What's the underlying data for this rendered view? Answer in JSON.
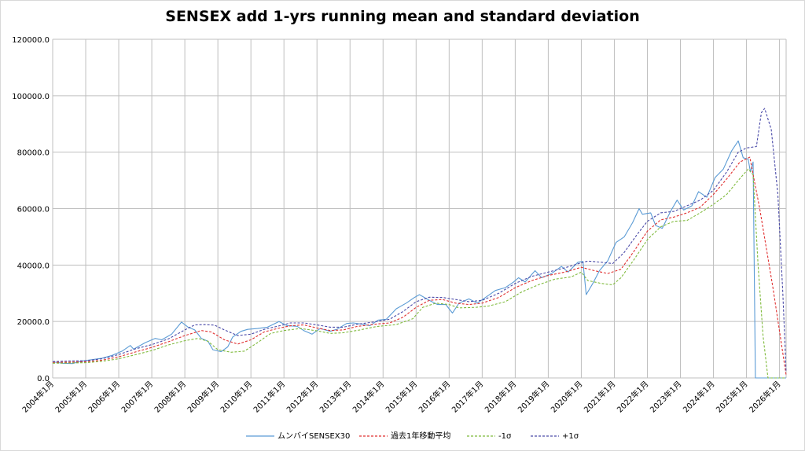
{
  "chart_data": {
    "type": "line",
    "title": "SENSEX add 1-yrs running mean and standard deviation",
    "xlabel": "",
    "ylabel": "",
    "ylim": [
      0,
      120000
    ],
    "yticks": [
      "0.0",
      "20000.0",
      "40000.0",
      "60000.0",
      "80000.0",
      "100000.0",
      "120000.0"
    ],
    "xticks": [
      "2004年1月",
      "2005年1月",
      "2006年1月",
      "2007年1月",
      "2008年1月",
      "2009年1月",
      "2010年1月",
      "2011年1月",
      "2012年1月",
      "2013年1月",
      "2014年1月",
      "2015年1月",
      "2016年1月",
      "2017年1月",
      "2018年1月",
      "2019年1月",
      "2020年1月",
      "2021年1月",
      "2022年1月",
      "2023年1月",
      "2024年1月",
      "2025年1月",
      "2026年1月"
    ],
    "x_range": [
      2004.0,
      2026.2
    ],
    "grid": true,
    "legend_position": "bottom",
    "series": [
      {
        "name": "ムンバイSENSEX30",
        "color": "#5b9bd5",
        "style": "solid",
        "points": [
          [
            2004.0,
            5700
          ],
          [
            2004.3,
            5200
          ],
          [
            2004.6,
            5100
          ],
          [
            2004.9,
            6000
          ],
          [
            2005.2,
            6500
          ],
          [
            2005.5,
            7000
          ],
          [
            2005.8,
            8000
          ],
          [
            2006.1,
            9500
          ],
          [
            2006.35,
            11500
          ],
          [
            2006.45,
            10200
          ],
          [
            2006.8,
            12500
          ],
          [
            2007.1,
            14000
          ],
          [
            2007.3,
            13500
          ],
          [
            2007.6,
            15500
          ],
          [
            2007.9,
            19800
          ],
          [
            2008.1,
            18000
          ],
          [
            2008.3,
            17000
          ],
          [
            2008.5,
            14000
          ],
          [
            2008.7,
            13000
          ],
          [
            2008.85,
            10000
          ],
          [
            2009.1,
            9300
          ],
          [
            2009.3,
            11000
          ],
          [
            2009.45,
            14500
          ],
          [
            2009.7,
            16500
          ],
          [
            2009.9,
            17200
          ],
          [
            2010.2,
            17500
          ],
          [
            2010.5,
            18000
          ],
          [
            2010.85,
            20000
          ],
          [
            2011.1,
            18500
          ],
          [
            2011.4,
            18300
          ],
          [
            2011.6,
            16800
          ],
          [
            2011.85,
            15500
          ],
          [
            2012.1,
            17500
          ],
          [
            2012.4,
            16500
          ],
          [
            2012.6,
            17200
          ],
          [
            2012.9,
            19300
          ],
          [
            2013.1,
            19500
          ],
          [
            2013.4,
            19000
          ],
          [
            2013.6,
            18500
          ],
          [
            2013.85,
            20500
          ],
          [
            2014.1,
            20800
          ],
          [
            2014.4,
            24500
          ],
          [
            2014.7,
            26500
          ],
          [
            2014.95,
            28500
          ],
          [
            2015.1,
            29500
          ],
          [
            2015.4,
            27500
          ],
          [
            2015.65,
            26000
          ],
          [
            2015.9,
            26000
          ],
          [
            2016.1,
            23000
          ],
          [
            2016.3,
            26500
          ],
          [
            2016.6,
            28000
          ],
          [
            2016.85,
            26500
          ],
          [
            2017.1,
            28500
          ],
          [
            2017.4,
            31000
          ],
          [
            2017.7,
            32000
          ],
          [
            2017.95,
            34000
          ],
          [
            2018.1,
            35500
          ],
          [
            2018.3,
            34000
          ],
          [
            2018.6,
            38000
          ],
          [
            2018.8,
            35500
          ],
          [
            2019.1,
            37000
          ],
          [
            2019.4,
            39500
          ],
          [
            2019.6,
            37500
          ],
          [
            2019.9,
            41000
          ],
          [
            2020.05,
            41300
          ],
          [
            2020.15,
            29500
          ],
          [
            2020.35,
            33500
          ],
          [
            2020.55,
            38000
          ],
          [
            2020.8,
            41500
          ],
          [
            2021.05,
            48000
          ],
          [
            2021.3,
            50000
          ],
          [
            2021.55,
            55000
          ],
          [
            2021.75,
            60000
          ],
          [
            2021.85,
            58000
          ],
          [
            2022.1,
            58500
          ],
          [
            2022.25,
            54000
          ],
          [
            2022.45,
            53000
          ],
          [
            2022.7,
            59000
          ],
          [
            2022.9,
            63000
          ],
          [
            2023.1,
            59500
          ],
          [
            2023.35,
            61000
          ],
          [
            2023.55,
            66000
          ],
          [
            2023.8,
            64000
          ],
          [
            2024.05,
            71000
          ],
          [
            2024.3,
            74000
          ],
          [
            2024.55,
            80500
          ],
          [
            2024.75,
            84000
          ],
          [
            2024.9,
            78000
          ],
          [
            2025.05,
            77500
          ],
          [
            2025.12,
            73000
          ],
          [
            2025.2,
            76500
          ],
          [
            2025.27,
            0
          ],
          [
            2026.2,
            0
          ]
        ]
      },
      {
        "name": "過去1年移動平均",
        "color": "#e03030",
        "style": "dashed",
        "points": [
          [
            2004.0,
            5500
          ],
          [
            2004.5,
            5600
          ],
          [
            2005.0,
            5700
          ],
          [
            2005.5,
            6300
          ],
          [
            2006.0,
            7500
          ],
          [
            2006.5,
            9200
          ],
          [
            2007.0,
            10800
          ],
          [
            2007.5,
            12800
          ],
          [
            2008.0,
            15000
          ],
          [
            2008.5,
            16800
          ],
          [
            2008.8,
            16300
          ],
          [
            2009.2,
            13500
          ],
          [
            2009.6,
            12000
          ],
          [
            2010.0,
            13500
          ],
          [
            2010.4,
            16300
          ],
          [
            2010.8,
            17500
          ],
          [
            2011.2,
            18500
          ],
          [
            2011.6,
            18800
          ],
          [
            2012.0,
            17700
          ],
          [
            2012.4,
            16800
          ],
          [
            2012.8,
            17000
          ],
          [
            2013.2,
            18200
          ],
          [
            2013.7,
            19000
          ],
          [
            2014.2,
            19500
          ],
          [
            2014.6,
            21500
          ],
          [
            2015.0,
            25000
          ],
          [
            2015.4,
            27500
          ],
          [
            2015.8,
            27800
          ],
          [
            2016.2,
            26500
          ],
          [
            2016.6,
            26000
          ],
          [
            2017.0,
            26500
          ],
          [
            2017.5,
            28500
          ],
          [
            2018.0,
            32000
          ],
          [
            2018.5,
            34500
          ],
          [
            2019.0,
            36300
          ],
          [
            2019.5,
            37500
          ],
          [
            2020.0,
            39200
          ],
          [
            2020.4,
            38000
          ],
          [
            2020.8,
            37000
          ],
          [
            2021.2,
            38500
          ],
          [
            2021.6,
            45000
          ],
          [
            2022.0,
            52000
          ],
          [
            2022.4,
            56000
          ],
          [
            2022.8,
            57000
          ],
          [
            2023.2,
            58500
          ],
          [
            2023.6,
            60500
          ],
          [
            2024.0,
            65000
          ],
          [
            2024.4,
            70500
          ],
          [
            2024.8,
            76500
          ],
          [
            2025.1,
            78200
          ],
          [
            2025.4,
            60000
          ],
          [
            2025.8,
            32000
          ],
          [
            2026.2,
            1000
          ]
        ]
      },
      {
        "name": "-1σ",
        "color": "#7fba3c",
        "style": "dashed",
        "points": [
          [
            2004.0,
            5200
          ],
          [
            2004.5,
            5300
          ],
          [
            2005.0,
            5400
          ],
          [
            2005.5,
            5900
          ],
          [
            2006.0,
            6800
          ],
          [
            2006.5,
            8200
          ],
          [
            2007.0,
            9700
          ],
          [
            2007.5,
            11700
          ],
          [
            2008.0,
            13200
          ],
          [
            2008.4,
            14000
          ],
          [
            2008.7,
            13000
          ],
          [
            2009.0,
            10000
          ],
          [
            2009.4,
            9100
          ],
          [
            2009.8,
            9500
          ],
          [
            2010.2,
            12500
          ],
          [
            2010.6,
            15800
          ],
          [
            2011.0,
            16800
          ],
          [
            2011.5,
            17500
          ],
          [
            2012.0,
            16700
          ],
          [
            2012.4,
            15800
          ],
          [
            2012.8,
            16000
          ],
          [
            2013.3,
            17000
          ],
          [
            2013.8,
            18200
          ],
          [
            2014.4,
            18900
          ],
          [
            2014.9,
            21000
          ],
          [
            2015.2,
            25000
          ],
          [
            2015.6,
            26500
          ],
          [
            2016.0,
            26000
          ],
          [
            2016.3,
            24800
          ],
          [
            2016.8,
            25000
          ],
          [
            2017.2,
            25500
          ],
          [
            2017.7,
            27000
          ],
          [
            2018.2,
            30500
          ],
          [
            2018.7,
            33000
          ],
          [
            2019.2,
            35000
          ],
          [
            2019.7,
            35800
          ],
          [
            2020.0,
            37500
          ],
          [
            2020.2,
            34500
          ],
          [
            2020.6,
            33500
          ],
          [
            2020.95,
            33000
          ],
          [
            2021.2,
            35500
          ],
          [
            2021.6,
            42000
          ],
          [
            2022.0,
            49000
          ],
          [
            2022.4,
            53500
          ],
          [
            2022.8,
            55500
          ],
          [
            2023.2,
            55800
          ],
          [
            2023.6,
            58500
          ],
          [
            2024.0,
            61500
          ],
          [
            2024.4,
            65000
          ],
          [
            2024.75,
            70000
          ],
          [
            2025.05,
            74000
          ],
          [
            2025.2,
            72000
          ],
          [
            2025.35,
            40000
          ],
          [
            2025.5,
            15000
          ],
          [
            2025.65,
            0
          ],
          [
            2026.2,
            0
          ]
        ]
      },
      {
        "name": "+1σ",
        "color": "#4a4aa8",
        "style": "dashed",
        "points": [
          [
            2004.0,
            5800
          ],
          [
            2004.5,
            6000
          ],
          [
            2005.0,
            6100
          ],
          [
            2005.5,
            6800
          ],
          [
            2006.0,
            8300
          ],
          [
            2006.5,
            10300
          ],
          [
            2007.0,
            11800
          ],
          [
            2007.5,
            13800
          ],
          [
            2008.0,
            17000
          ],
          [
            2008.3,
            18800
          ],
          [
            2008.6,
            18900
          ],
          [
            2008.9,
            18700
          ],
          [
            2009.2,
            17000
          ],
          [
            2009.6,
            15000
          ],
          [
            2010.0,
            15500
          ],
          [
            2010.4,
            17200
          ],
          [
            2010.8,
            18300
          ],
          [
            2011.2,
            19500
          ],
          [
            2011.6,
            19500
          ],
          [
            2012.0,
            18800
          ],
          [
            2012.4,
            18000
          ],
          [
            2012.8,
            18000
          ],
          [
            2013.2,
            19000
          ],
          [
            2013.7,
            19800
          ],
          [
            2014.2,
            20800
          ],
          [
            2014.6,
            23500
          ],
          [
            2015.0,
            27000
          ],
          [
            2015.4,
            28600
          ],
          [
            2015.8,
            28500
          ],
          [
            2016.2,
            27800
          ],
          [
            2016.6,
            27000
          ],
          [
            2017.0,
            27500
          ],
          [
            2017.5,
            30000
          ],
          [
            2018.0,
            33500
          ],
          [
            2018.5,
            36000
          ],
          [
            2019.0,
            37500
          ],
          [
            2019.5,
            39000
          ],
          [
            2020.0,
            40800
          ],
          [
            2020.2,
            41400
          ],
          [
            2020.6,
            41000
          ],
          [
            2020.95,
            40500
          ],
          [
            2021.3,
            44500
          ],
          [
            2021.7,
            51000
          ],
          [
            2022.0,
            55500
          ],
          [
            2022.4,
            58500
          ],
          [
            2022.8,
            59000
          ],
          [
            2023.2,
            61000
          ],
          [
            2023.6,
            63000
          ],
          [
            2024.0,
            66500
          ],
          [
            2024.4,
            73000
          ],
          [
            2024.75,
            80000
          ],
          [
            2025.0,
            81500
          ],
          [
            2025.3,
            82000
          ],
          [
            2025.45,
            94000
          ],
          [
            2025.55,
            95500
          ],
          [
            2025.75,
            88000
          ],
          [
            2025.95,
            65000
          ],
          [
            2026.1,
            30000
          ],
          [
            2026.2,
            2000
          ]
        ]
      }
    ]
  }
}
